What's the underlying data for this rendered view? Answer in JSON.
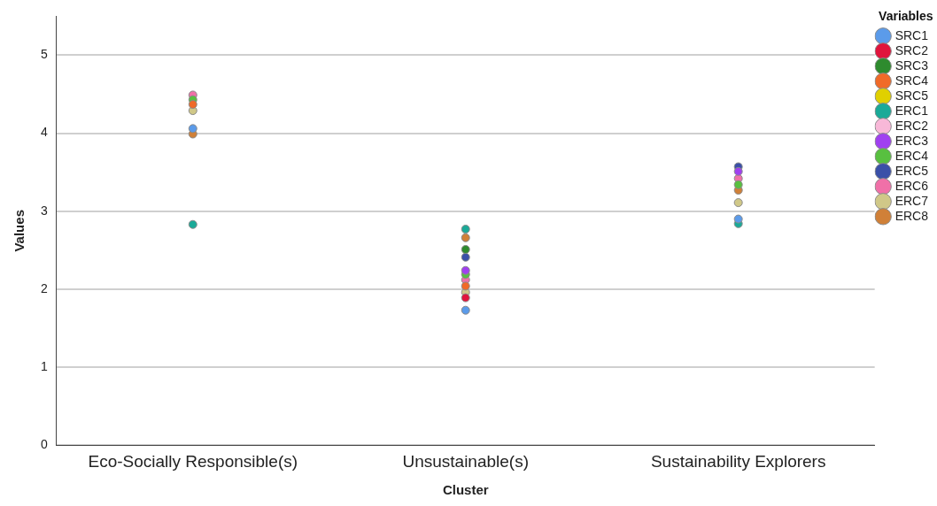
{
  "chart_data": {
    "type": "scatter",
    "xlabel": "Cluster",
    "ylabel": "Values",
    "legend_title": "Variables",
    "categories": [
      "Eco-Socially Responsible(s)",
      "Unsustainable(s)",
      "Sustainability Explorers"
    ],
    "series": [
      {
        "name": "SRC1",
        "color": "#5b9bea",
        "values": [
          4.06,
          1.73,
          2.9
        ]
      },
      {
        "name": "SRC2",
        "color": "#e0143c",
        "values": [
          null,
          1.89,
          null
        ]
      },
      {
        "name": "SRC3",
        "color": "#2e8b2e",
        "values": [
          null,
          2.51,
          null
        ]
      },
      {
        "name": "SRC4",
        "color": "#f06a28",
        "values": [
          4.37,
          2.04,
          null
        ]
      },
      {
        "name": "SRC5",
        "color": "#e0d000",
        "values": [
          null,
          null,
          null
        ]
      },
      {
        "name": "ERC1",
        "color": "#1aaa98",
        "values": [
          2.83,
          2.77,
          2.84
        ]
      },
      {
        "name": "ERC2",
        "color": "#f8b8d8",
        "values": [
          null,
          null,
          null
        ]
      },
      {
        "name": "ERC3",
        "color": "#a040f0",
        "values": [
          null,
          2.24,
          3.51
        ]
      },
      {
        "name": "ERC4",
        "color": "#58c040",
        "values": [
          4.43,
          2.19,
          3.34
        ]
      },
      {
        "name": "ERC5",
        "color": "#3a50a8",
        "values": [
          null,
          2.41,
          3.57
        ]
      },
      {
        "name": "ERC6",
        "color": "#f070a8",
        "values": [
          4.49,
          2.12,
          3.42
        ]
      },
      {
        "name": "ERC7",
        "color": "#d0c888",
        "values": [
          4.29,
          1.96,
          3.11
        ]
      },
      {
        "name": "ERC8",
        "color": "#d08038",
        "values": [
          3.99,
          2.66,
          3.27
        ]
      }
    ],
    "ylim": [
      0,
      5.5
    ],
    "yticks": [
      0,
      1,
      2,
      3,
      4,
      5
    ],
    "grid": "y",
    "legend": "top right",
    "marker": "circle"
  }
}
